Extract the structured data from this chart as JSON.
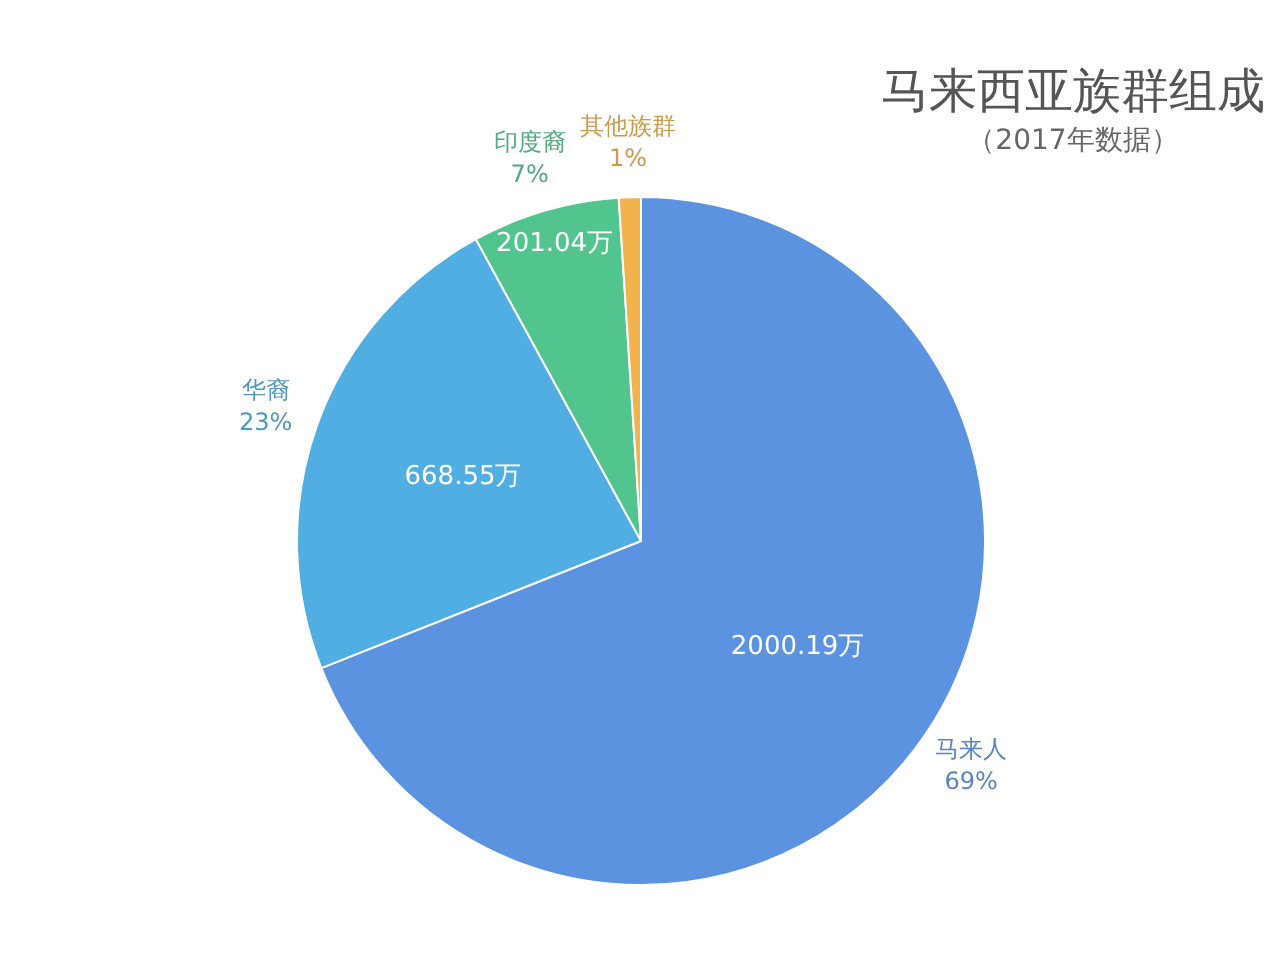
{
  "chart_data": {
    "type": "pie",
    "title": "马来西亚族群组成",
    "subtitle": "（2017年数据）",
    "categories": [
      "马来人",
      "华裔",
      "印度裔",
      "其他族群"
    ],
    "values": [
      2000.19,
      668.55,
      201.04,
      30
    ],
    "colors": [
      "#5b93e0",
      "#50aee2",
      "#52c48e",
      "#f2b34c"
    ],
    "value_labels": [
      "2000.19万",
      "668.55万",
      "201.04万",
      null
    ],
    "annotations": [
      {
        "text": "69%",
        "x": "马来人"
      },
      {
        "text": "23%",
        "x": "华裔"
      },
      {
        "text": "7%",
        "x": "印度裔"
      },
      {
        "text": "1%",
        "x": "其他族群"
      }
    ]
  }
}
